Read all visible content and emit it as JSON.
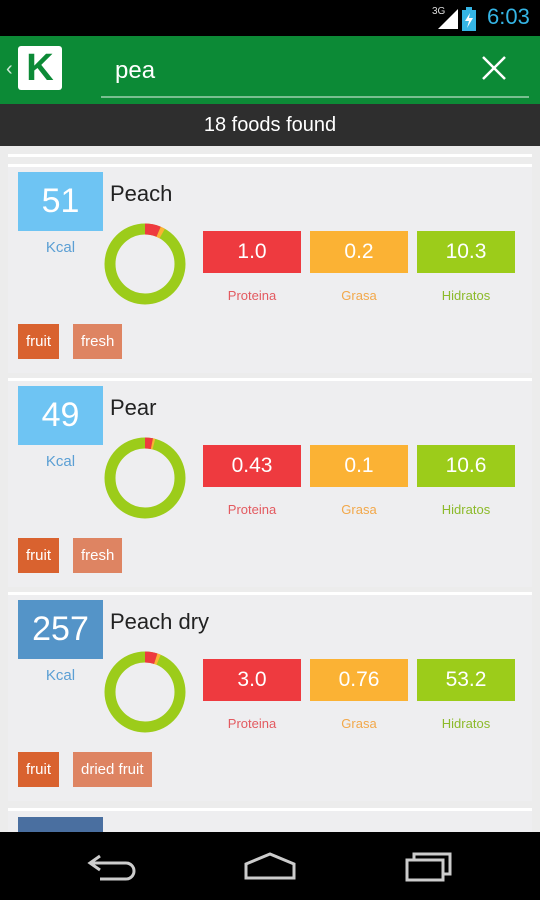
{
  "status": {
    "network": "3G",
    "time": "6:03"
  },
  "search": {
    "query": "pea",
    "placeholder": ""
  },
  "results_label": "18 foods found",
  "foods": [
    {
      "name": "Peach",
      "kcal": "51",
      "kcal_unit": "Kcal",
      "kcal_color": "#6ec4f3",
      "protein": "1.0",
      "fat": "0.2",
      "carbs": "10.3",
      "protein_label": "Proteina",
      "fat_label": "Grasa",
      "carbs_label": "Hidratos",
      "tags": [
        "fruit",
        "fresh"
      ]
    },
    {
      "name": "Pear",
      "kcal": "49",
      "kcal_unit": "Kcal",
      "kcal_color": "#6ec4f3",
      "protein": "0.43",
      "fat": "0.1",
      "carbs": "10.6",
      "protein_label": "Proteina",
      "fat_label": "Grasa",
      "carbs_label": "Hidratos",
      "tags": [
        "fruit",
        "fresh"
      ]
    },
    {
      "name": "Peach dry",
      "kcal": "257",
      "kcal_unit": "Kcal",
      "kcal_color": "#5494c8",
      "protein": "3.0",
      "fat": "0.76",
      "carbs": "53.2",
      "protein_label": "Proteina",
      "fat_label": "Grasa",
      "carbs_label": "Hidratos",
      "tags": [
        "fruit",
        "dried fruit"
      ]
    }
  ],
  "colors": {
    "appbar": "#0c8a36",
    "protein": "#ee3a3f",
    "fat": "#fbb234",
    "carbs": "#9ccc1a",
    "tag_primary": "#d9622f",
    "tag_secondary": "#de8462"
  },
  "icons": {
    "logo": "app-logo-k",
    "clear": "close-icon",
    "back": "back-arrow-icon",
    "home": "home-icon",
    "recents": "recents-icon"
  }
}
